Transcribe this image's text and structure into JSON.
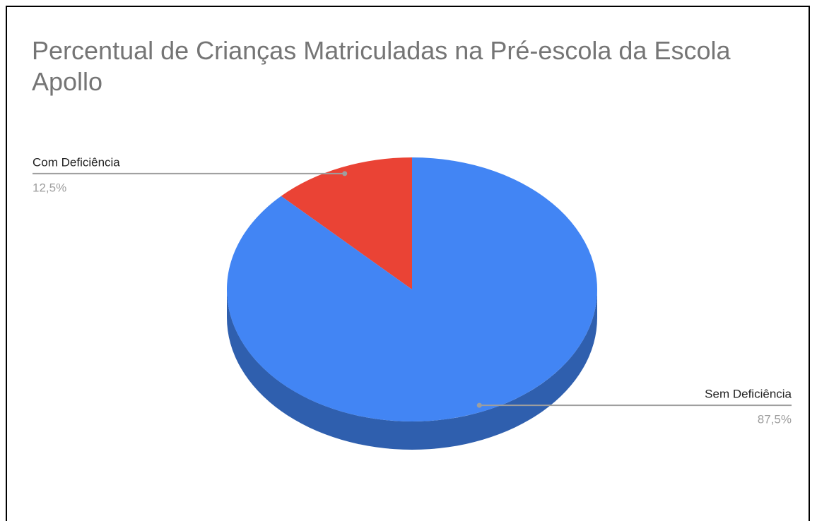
{
  "chart_data": {
    "type": "pie",
    "title": "Percentual de Crianças Matriculadas na Pré-escola da Escola Apollo",
    "three_d": true,
    "categories": [
      "Com Deficiência",
      "Sem Deficiência"
    ],
    "values": [
      12.5,
      87.5
    ],
    "value_labels": [
      "12,5%",
      "87,5%"
    ],
    "colors": [
      "#ea4335",
      "#4285f4"
    ],
    "side_colors": [
      "#a8302a",
      "#2f5fae"
    ]
  }
}
